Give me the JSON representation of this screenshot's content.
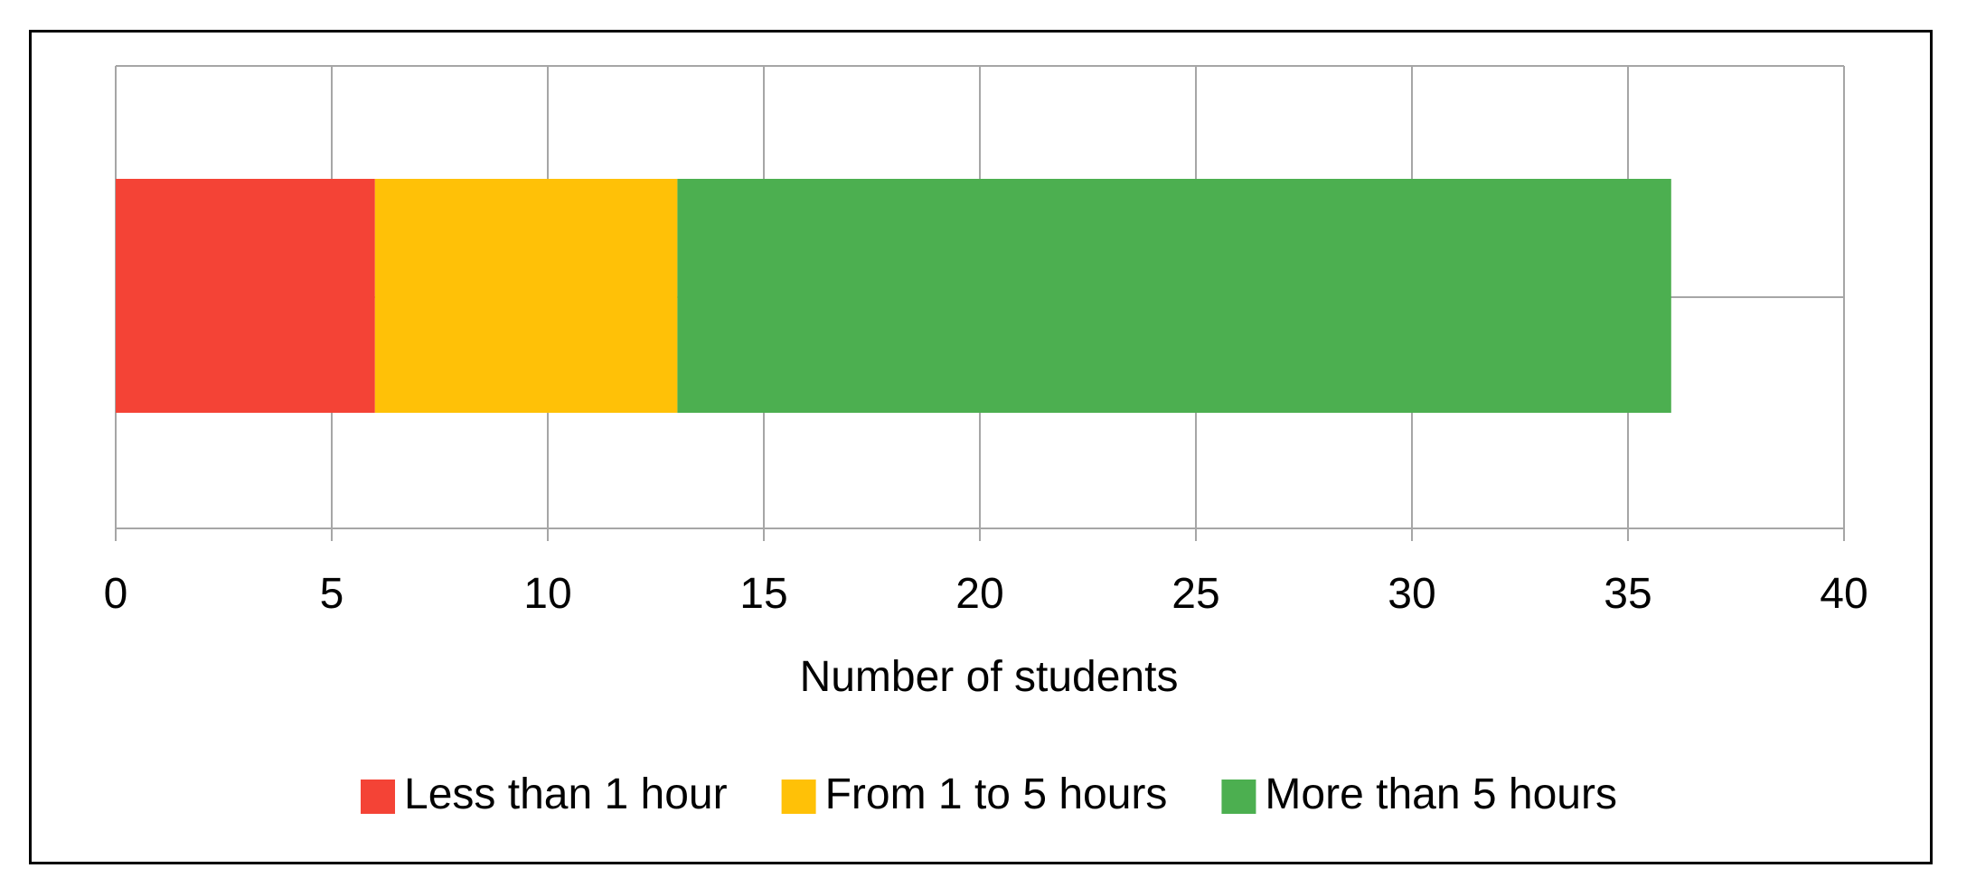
{
  "chart_data": {
    "type": "bar",
    "orientation": "horizontal",
    "stacked": true,
    "title": "",
    "xlabel": "Number of students",
    "ylabel": "",
    "xlim": [
      0,
      40
    ],
    "xticks": [
      0,
      5,
      10,
      15,
      20,
      25,
      30,
      35,
      40
    ],
    "categories": [
      ""
    ],
    "grid": true,
    "legend_position": "bottom",
    "series": [
      {
        "name": "Less than 1 hour",
        "values": [
          6
        ],
        "color": "#F44336"
      },
      {
        "name": "From 1 to 5 hours",
        "values": [
          7
        ],
        "color": "#FFC107"
      },
      {
        "name": "More than 5 hours",
        "values": [
          23
        ],
        "color": "#4CAF50"
      }
    ]
  }
}
